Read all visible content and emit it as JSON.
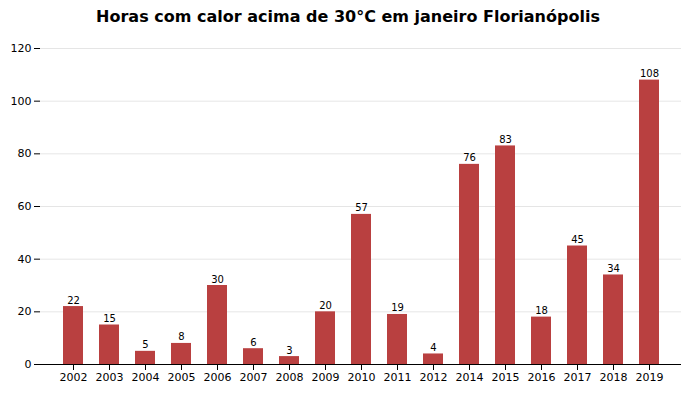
{
  "chart_data": {
    "type": "bar",
    "title": "Horas com calor acima de 30°C em janeiro Florianópolis",
    "categories": [
      "2002",
      "2003",
      "2004",
      "2005",
      "2006",
      "2007",
      "2008",
      "2009",
      "2010",
      "2011",
      "2012",
      "2014",
      "2015",
      "2016",
      "2017",
      "2018",
      "2019"
    ],
    "values": [
      22,
      15,
      5,
      8,
      30,
      6,
      3,
      20,
      57,
      19,
      4,
      76,
      83,
      18,
      45,
      34,
      108
    ],
    "color": "#b94040",
    "ylim": [
      0,
      120
    ],
    "yticks": [
      0,
      20,
      40,
      60,
      80,
      100,
      120
    ],
    "grid": true,
    "data_labels": true
  }
}
